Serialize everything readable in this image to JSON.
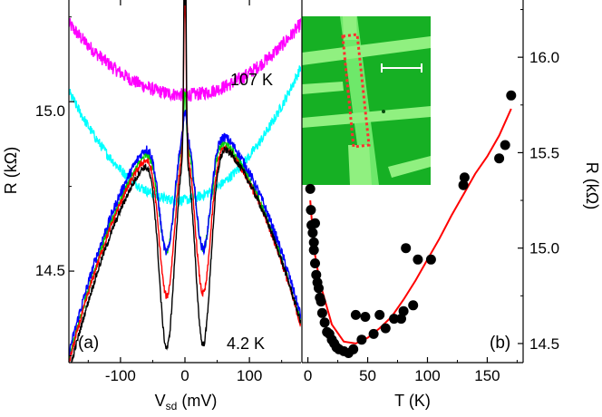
{
  "chart_data": [
    {
      "id": "a",
      "type": "line",
      "panel_label": "(a)",
      "xlabel_main": "V",
      "xlabel_sub": "sd",
      "xlabel_unit": " (mV)",
      "ylabel": "R (kΩ)",
      "xlim": [
        -180,
        180
      ],
      "ylim": [
        14.23,
        15.3
      ],
      "xticks": [
        -100,
        0,
        100
      ],
      "yticks": [
        14.5,
        15.0
      ],
      "ytick_labels": [
        "14.5",
        "15.0"
      ],
      "grid": false,
      "annotations": {
        "top_temperature": "107 K",
        "bottom_temperature": "4.2 K"
      },
      "series": [
        {
          "color": "#ff00ff",
          "base": 15.02,
          "curv": 6.5e-06,
          "lin": 0.0,
          "dip": 0.0,
          "dipw": 30,
          "peak": 0.0,
          "peakw": 3,
          "noise": 0.02
        },
        {
          "color": "#00ffff",
          "base": 14.71,
          "curv": 1.1e-05,
          "lin": 0.0002,
          "dip": 0.0,
          "dipw": 30,
          "peak": 0.0,
          "peakw": 3,
          "noise": 0.015
        },
        {
          "color": "#00cc00",
          "base": 14.94,
          "curv": -2e-05,
          "lin": 0.0003,
          "dip": 0.36,
          "dipw": 28,
          "peak": 0.14,
          "peakw": 2.5,
          "noise": 0.012
        },
        {
          "color": "#0000ff",
          "base": 14.96,
          "curv": -2e-05,
          "lin": 0.0003,
          "dip": 0.38,
          "dipw": 28,
          "peak": 0.06,
          "peakw": 3,
          "noise": 0.014
        },
        {
          "color": "#ff0000",
          "base": 14.93,
          "curv": -2e-05,
          "lin": 0.0003,
          "dip": 0.48,
          "dipw": 28,
          "peak": 0.46,
          "peakw": 2.5,
          "noise": 0.01
        },
        {
          "color": "#000000",
          "base": 14.92,
          "curv": -2e-05,
          "lin": 0.0004,
          "dip": 0.62,
          "dipw": 28,
          "peak": 0.76,
          "peakw": 2.3,
          "noise": 0.01
        }
      ]
    },
    {
      "id": "b",
      "type": "scatter",
      "panel_label": "(b)",
      "xlabel": "T (K)",
      "ylabel": "R (kΩ)",
      "xlim": [
        -5,
        180
      ],
      "ylim": [
        14.4,
        16.3
      ],
      "xticks": [
        0,
        50,
        100,
        150
      ],
      "xtick_labels": [
        "0",
        "50",
        "100",
        "150"
      ],
      "yticks": [
        14.5,
        15.0,
        15.5,
        16.0
      ],
      "ytick_labels": [
        "14.5",
        "15.0",
        "15.5",
        "16.0"
      ],
      "grid": false,
      "points": [
        [
          2,
          15.31
        ],
        [
          2.5,
          15.2
        ],
        [
          3,
          15.12
        ],
        [
          4,
          15.08
        ],
        [
          5,
          15.03
        ],
        [
          5,
          14.99
        ],
        [
          6,
          14.92
        ],
        [
          6,
          15.13
        ],
        [
          7,
          14.86
        ],
        [
          8,
          14.82
        ],
        [
          9,
          14.79
        ],
        [
          10,
          14.74
        ],
        [
          11,
          14.72
        ],
        [
          12,
          14.66
        ],
        [
          14,
          14.61
        ],
        [
          16,
          14.56
        ],
        [
          18,
          14.55
        ],
        [
          20,
          14.52
        ],
        [
          22,
          14.5
        ],
        [
          24,
          14.48
        ],
        [
          26,
          14.47
        ],
        [
          30,
          14.46
        ],
        [
          34,
          14.45
        ],
        [
          38,
          14.47
        ],
        [
          45,
          14.52
        ],
        [
          40,
          14.65
        ],
        [
          48,
          14.64
        ],
        [
          55,
          14.55
        ],
        [
          60,
          14.65
        ],
        [
          65,
          14.58
        ],
        [
          72,
          14.63
        ],
        [
          78,
          14.63
        ],
        [
          80,
          14.67
        ],
        [
          82,
          15.0
        ],
        [
          88,
          14.7
        ],
        [
          92,
          14.94
        ],
        [
          103,
          14.94
        ],
        [
          130,
          15.33
        ],
        [
          131,
          15.37
        ],
        [
          160,
          15.47
        ],
        [
          165,
          15.54
        ],
        [
          170,
          15.8
        ]
      ],
      "fit_color": "#ff0000",
      "fit": [
        [
          2,
          15.25
        ],
        [
          5,
          15.0
        ],
        [
          10,
          14.82
        ],
        [
          20,
          14.6
        ],
        [
          30,
          14.51
        ],
        [
          40,
          14.5
        ],
        [
          50,
          14.53
        ],
        [
          60,
          14.58
        ],
        [
          70,
          14.64
        ],
        [
          80,
          14.73
        ],
        [
          90,
          14.83
        ],
        [
          100,
          14.94
        ],
        [
          110,
          15.05
        ],
        [
          120,
          15.17
        ],
        [
          130,
          15.28
        ],
        [
          140,
          15.39
        ],
        [
          150,
          15.48
        ],
        [
          160,
          15.59
        ],
        [
          170,
          15.73
        ]
      ],
      "inset": {
        "background": "#16b024",
        "strip_color": "#6ee86a",
        "electrode_color": "#90f080",
        "outline_color": "#ff3030",
        "scalebar_color": "#ffffff"
      }
    }
  ]
}
